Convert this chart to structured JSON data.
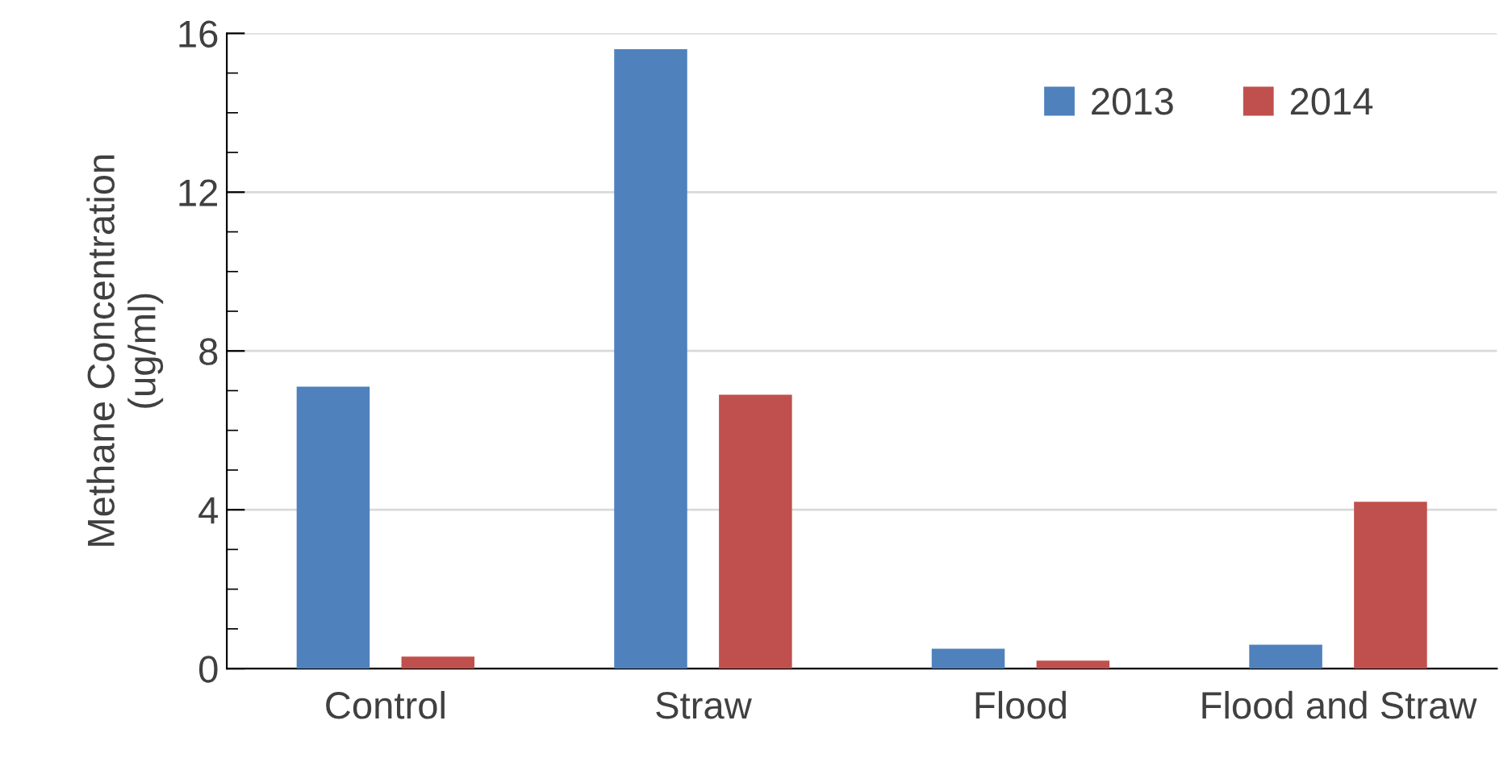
{
  "chart_data": {
    "type": "bar",
    "ylabel": "Methane Concentration\n(ug/ml)",
    "categories": [
      "Control",
      "Straw",
      "Flood",
      "Flood and Straw"
    ],
    "series": [
      {
        "name": "2013",
        "color": "#4f81bd",
        "values": [
          7.1,
          15.6,
          0.5,
          0.6
        ]
      },
      {
        "name": "2014",
        "color": "#c0504d",
        "values": [
          0.3,
          6.9,
          0.2,
          4.2
        ]
      }
    ],
    "ylim": [
      0,
      16
    ],
    "yticks": [
      0,
      4,
      8,
      12,
      16
    ],
    "grid": "y",
    "legend": "top right"
  }
}
